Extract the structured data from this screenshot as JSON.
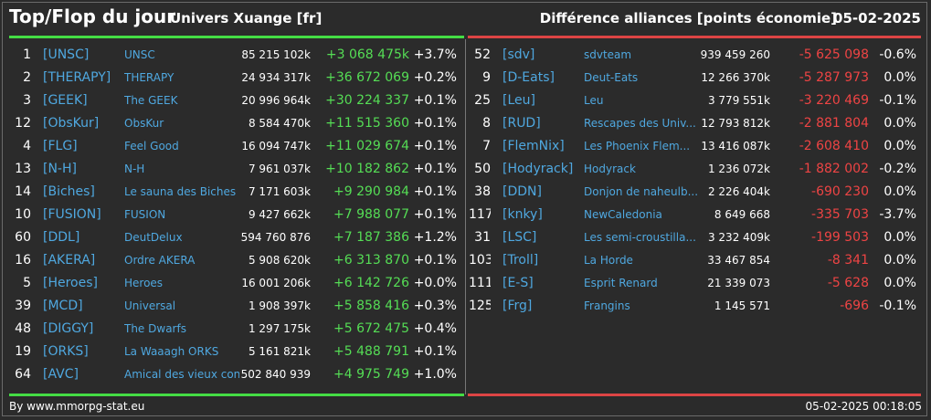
{
  "header": {
    "title": "Top/Flop du jour",
    "universe": "Univers Xuange [fr]",
    "subtitle": "Différence alliances [points économie]",
    "date": "05-02-2025"
  },
  "colors": {
    "positive": "#55dd55",
    "negative": "#ee4444",
    "link": "#4fa8e0",
    "background": "#2b2b2b"
  },
  "top": [
    {
      "rank": "1",
      "tag": "[UNSC]",
      "name": "UNSC",
      "points": "85 215 102k",
      "diff": "+3 068 475k",
      "pct": "+3.7%"
    },
    {
      "rank": "2",
      "tag": "[THERAPY]",
      "name": "THERAPY",
      "points": "24 934 317k",
      "diff": "+36 672 069",
      "pct": "+0.2%"
    },
    {
      "rank": "3",
      "tag": "[GEEK]",
      "name": "The GEEK",
      "points": "20 996 964k",
      "diff": "+30 224 337",
      "pct": "+0.1%"
    },
    {
      "rank": "12",
      "tag": "[ObsKur]",
      "name": "ObsKur",
      "points": "8 584 470k",
      "diff": "+11 515 360",
      "pct": "+0.1%"
    },
    {
      "rank": "4",
      "tag": "[FLG]",
      "name": "Feel Good",
      "points": "16 094 747k",
      "diff": "+11 029 674",
      "pct": "+0.1%"
    },
    {
      "rank": "13",
      "tag": "[N-H]",
      "name": "N-H",
      "points": "7 961 037k",
      "diff": "+10 182 862",
      "pct": "+0.1%"
    },
    {
      "rank": "14",
      "tag": "[Biches]",
      "name": "Le sauna des Biches",
      "points": "7 171 603k",
      "diff": "+9 290 984",
      "pct": "+0.1%"
    },
    {
      "rank": "10",
      "tag": "[FUSION]",
      "name": "FUSION",
      "points": "9 427 662k",
      "diff": "+7 988 077",
      "pct": "+0.1%"
    },
    {
      "rank": "60",
      "tag": "[DDL]",
      "name": "DeutDelux",
      "points": "594 760 876",
      "diff": "+7 187 386",
      "pct": "+1.2%"
    },
    {
      "rank": "16",
      "tag": "[AKERA]",
      "name": "Ordre AKERA",
      "points": "5 908 620k",
      "diff": "+6 313 870",
      "pct": "+0.1%"
    },
    {
      "rank": "5",
      "tag": "[Heroes]",
      "name": "Heroes",
      "points": "16 001 206k",
      "diff": "+6 142 726",
      "pct": "+0.0%"
    },
    {
      "rank": "39",
      "tag": "[MCD]",
      "name": "Universal",
      "points": "1 908 397k",
      "diff": "+5 858 416",
      "pct": "+0.3%"
    },
    {
      "rank": "48",
      "tag": "[DIGGY]",
      "name": "The Dwarfs",
      "points": "1 297 175k",
      "diff": "+5 672 475",
      "pct": "+0.4%"
    },
    {
      "rank": "19",
      "tag": "[ORKS]",
      "name": "La Waaagh ORKS",
      "points": "5 161 821k",
      "diff": "+5 488 791",
      "pct": "+0.1%"
    },
    {
      "rank": "64",
      "tag": "[AVC]",
      "name": "Amical des vieux con",
      "points": "502 840 939",
      "diff": "+4 975 749",
      "pct": "+1.0%"
    }
  ],
  "flop": [
    {
      "rank": "52",
      "tag": "[sdv]",
      "name": "sdvteam",
      "points": "939 459 260",
      "diff": "-5 625 098",
      "pct": "-0.6%"
    },
    {
      "rank": "9",
      "tag": "[D-Eats]",
      "name": "Deut-Eats",
      "points": "12 266 370k",
      "diff": "-5 287 973",
      "pct": "0.0%"
    },
    {
      "rank": "25",
      "tag": "[Leu]",
      "name": "Leu",
      "points": "3 779 551k",
      "diff": "-3 220 469",
      "pct": "-0.1%"
    },
    {
      "rank": "8",
      "tag": "[RUD]",
      "name": "Rescapes des Univ...",
      "points": "12 793 812k",
      "diff": "-2 881 804",
      "pct": "0.0%"
    },
    {
      "rank": "7",
      "tag": "[FlemNix]",
      "name": "Les Phoenix Flem...",
      "points": "13 416 087k",
      "diff": "-2 608 410",
      "pct": "0.0%"
    },
    {
      "rank": "50",
      "tag": "[Hodyrack]",
      "name": "Hodyrack",
      "points": "1 236 072k",
      "diff": "-1 882 002",
      "pct": "-0.2%"
    },
    {
      "rank": "38",
      "tag": "[DDN]",
      "name": "Donjon de naheulb...",
      "points": "2 226 404k",
      "diff": "-690 230",
      "pct": "0.0%"
    },
    {
      "rank": "117",
      "tag": "[knky]",
      "name": "NewCaledonia",
      "points": "8 649 668",
      "diff": "-335 703",
      "pct": "-3.7%"
    },
    {
      "rank": "31",
      "tag": "[LSC]",
      "name": "Les semi-croustilla...",
      "points": "3 232 409k",
      "diff": "-199 503",
      "pct": "0.0%"
    },
    {
      "rank": "103",
      "tag": "[Troll]",
      "name": "La Horde",
      "points": "33 467 854",
      "diff": "-8 341",
      "pct": "0.0%"
    },
    {
      "rank": "111",
      "tag": "[E-S]",
      "name": "Esprit Renard",
      "points": "21 339 073",
      "diff": "-5 628",
      "pct": "0.0%"
    },
    {
      "rank": "125",
      "tag": "[Frg]",
      "name": "Frangins",
      "points": "1 145 571",
      "diff": "-696",
      "pct": "-0.1%"
    }
  ],
  "footer": {
    "credit": "By www.mmorpg-stat.eu",
    "timestamp": "05-02-2025 00:18:05"
  }
}
